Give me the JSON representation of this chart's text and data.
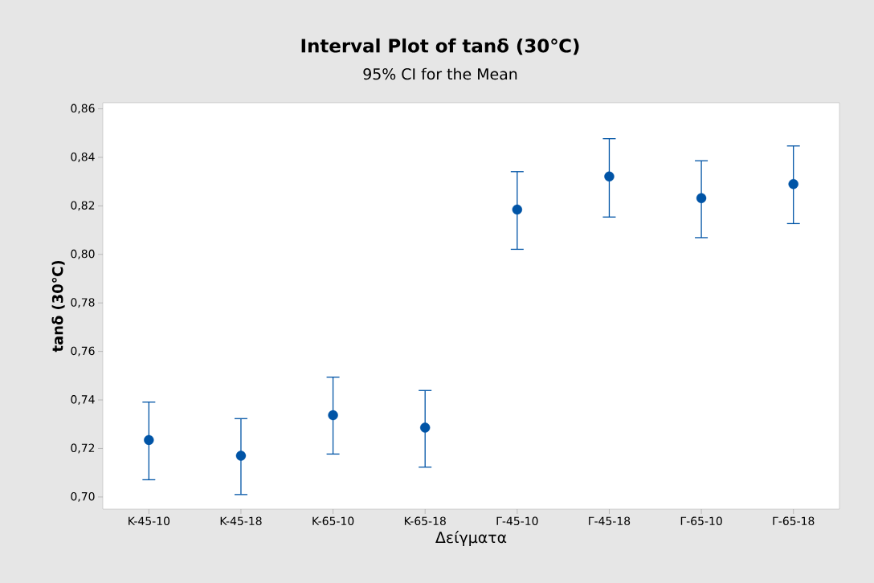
{
  "chart_data": {
    "type": "scatter",
    "title": "Interval Plot of tanδ (30℃)",
    "subtitle": "95% CI for the Mean",
    "xlabel": "Δείγματα",
    "ylabel": "tanδ (30℃)",
    "categories": [
      "K-45-10",
      "K-45-18",
      "K-65-10",
      "K-65-18",
      "Γ-45-10",
      "Γ-45-18",
      "Γ-65-10",
      "Γ-65-18"
    ],
    "series": [
      {
        "color": "#0054a6",
        "values": [
          0.7235,
          0.717,
          0.7337,
          0.7286,
          0.8185,
          0.8321,
          0.8232,
          0.829
        ],
        "errors": [
          [
            0.7071,
            0.7391
          ],
          [
            0.701,
            0.7323
          ],
          [
            0.7177,
            0.7494
          ],
          [
            0.7123,
            0.7439
          ],
          [
            0.8021,
            0.8341
          ],
          [
            0.8154,
            0.8477
          ],
          [
            0.8069,
            0.8386
          ],
          [
            0.8127,
            0.8447
          ]
        ]
      }
    ],
    "marker": "circle",
    "ylim": [
      0.695,
      0.8625
    ],
    "yticks": [
      {
        "value": 0.7,
        "label": "0,70"
      },
      {
        "value": 0.72,
        "label": "0,72"
      },
      {
        "value": 0.74,
        "label": "0,74"
      },
      {
        "value": 0.76,
        "label": "0,76"
      },
      {
        "value": 0.78,
        "label": "0,78"
      },
      {
        "value": 0.8,
        "label": "0,80"
      },
      {
        "value": 0.82,
        "label": "0,82"
      },
      {
        "value": 0.84,
        "label": "0,84"
      },
      {
        "value": 0.86,
        "label": "0,86"
      }
    ]
  }
}
